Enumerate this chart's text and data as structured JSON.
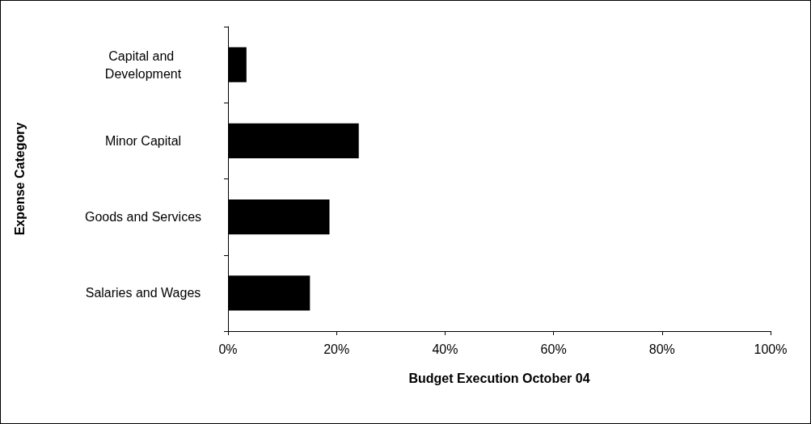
{
  "chart_data": {
    "type": "bar",
    "orientation": "horizontal",
    "xlabel": "Budget Execution October 04",
    "ylabel": "Expense Category",
    "categories": [
      "Capital and Development",
      "Minor Capital",
      "Goods and Services",
      "Salaries and Wages"
    ],
    "values": [
      3.4,
      24.1,
      18.7,
      15.1
    ],
    "color": "#000000",
    "xlim": [
      0,
      100
    ],
    "xticks": [
      {
        "value": 0,
        "label": "0%"
      },
      {
        "value": 20,
        "label": "20%"
      },
      {
        "value": 40,
        "label": "40%"
      },
      {
        "value": 60,
        "label": "60%"
      },
      {
        "value": 80,
        "label": "80%"
      },
      {
        "value": 100,
        "label": "100%"
      }
    ],
    "grid": false
  }
}
